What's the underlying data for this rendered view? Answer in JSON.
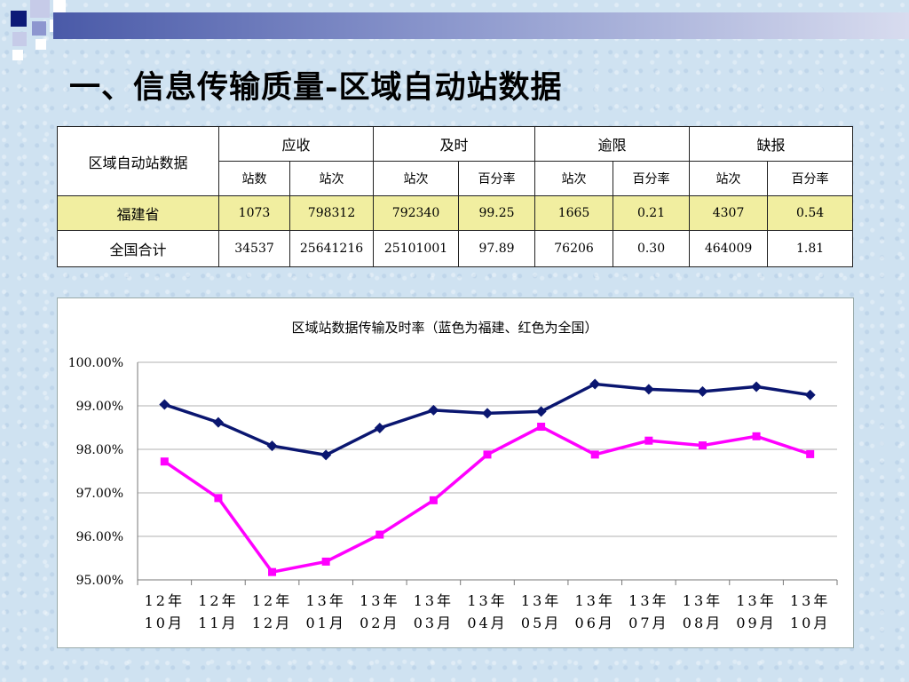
{
  "title": "一、信息传输质量-区域自动站数据",
  "table": {
    "corner": "区域自动站数据",
    "groups": [
      "应收",
      "及时",
      "逾限",
      "缺报"
    ],
    "subheaders": [
      "站数",
      "站次",
      "站次",
      "百分率",
      "站次",
      "百分率",
      "站次",
      "百分率"
    ],
    "rows": [
      {
        "label": "福建省",
        "values": [
          "1073",
          "798312",
          "792340",
          "99.25",
          "1665",
          "0.21",
          "4307",
          "0.54"
        ]
      },
      {
        "label": "全国合计",
        "values": [
          "34537",
          "25641216",
          "25101001",
          "97.89",
          "76206",
          "0.30",
          "464009",
          "1.81"
        ]
      }
    ]
  },
  "chart_data": {
    "type": "line",
    "title": "区域站数据传输及时率（蓝色为福建、红色为全国）",
    "categories": [
      [
        "12年",
        "10月"
      ],
      [
        "12年",
        "11月"
      ],
      [
        "12年",
        "12月"
      ],
      [
        "13年",
        "01月"
      ],
      [
        "13年",
        "02月"
      ],
      [
        "13年",
        "03月"
      ],
      [
        "13年",
        "04月"
      ],
      [
        "13年",
        "05月"
      ],
      [
        "13年",
        "06月"
      ],
      [
        "13年",
        "07月"
      ],
      [
        "13年",
        "08月"
      ],
      [
        "13年",
        "09月"
      ],
      [
        "13年",
        "10月"
      ]
    ],
    "ylim": [
      95,
      100
    ],
    "yticks": [
      95,
      96,
      97,
      98,
      99,
      100
    ],
    "ytick_labels": [
      "95.00%",
      "96.00%",
      "97.00%",
      "98.00%",
      "99.00%",
      "100.00%"
    ],
    "grid": true,
    "legend": "none",
    "series": [
      {
        "color": "#0a1670",
        "marker": "diamond",
        "values": [
          99.03,
          98.62,
          98.08,
          97.87,
          98.49,
          98.9,
          98.83,
          98.87,
          99.5,
          99.38,
          99.33,
          99.44,
          99.25
        ]
      },
      {
        "color": "#ff00ff",
        "marker": "square",
        "values": [
          97.72,
          96.88,
          95.18,
          95.42,
          96.04,
          96.83,
          97.88,
          98.52,
          97.88,
          98.2,
          98.09,
          98.3,
          97.89
        ]
      }
    ]
  }
}
